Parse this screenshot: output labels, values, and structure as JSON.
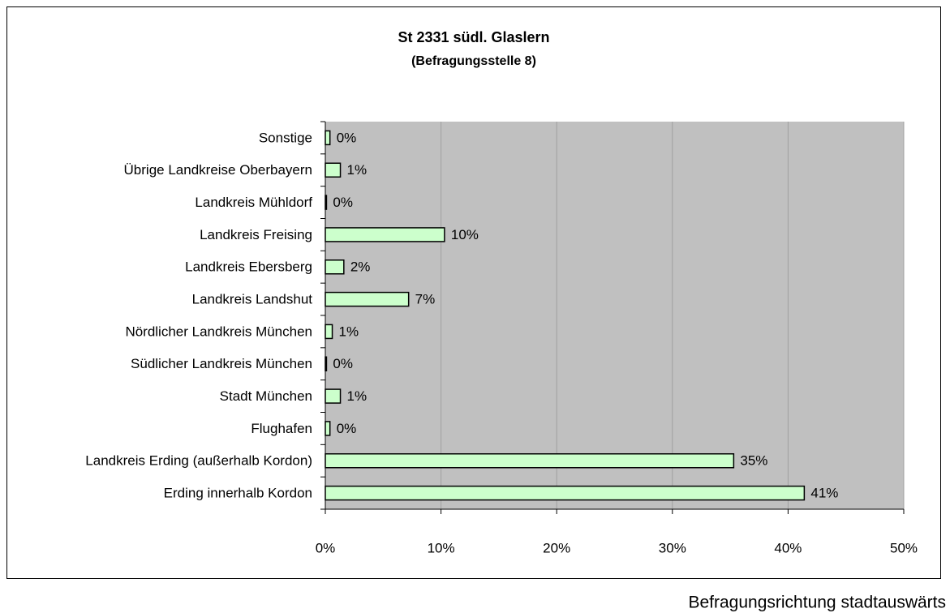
{
  "chart_data": {
    "type": "bar",
    "orientation": "horizontal",
    "title": "St 2331 südl. Glaslern",
    "subtitle": "(Befragungsstelle 8)",
    "note": "Befragungsrichtung stadtauswärts",
    "categories": [
      "Sonstige",
      "Übrige Landkreise Oberbayern",
      "Landkreis Mühldorf",
      "Landkreis Freising",
      "Landkreis Ebersberg",
      "Landkreis Landshut",
      "Nördlicher Landkreis München",
      "Südlicher Landkreis München",
      "Stadt München",
      "Flughafen",
      "Landkreis Erding (außerhalb Kordon)",
      "Erding innerhalb Kordon"
    ],
    "values": [
      0.4,
      1.3,
      0.1,
      10.3,
      1.6,
      7.2,
      0.6,
      0.1,
      1.3,
      0.4,
      35.3,
      41.4
    ],
    "value_labels": [
      "0%",
      "1%",
      "0%",
      "10%",
      "2%",
      "7%",
      "1%",
      "0%",
      "1%",
      "0%",
      "35%",
      "41%"
    ],
    "color": "#ccffcc",
    "xlim": [
      0,
      50
    ],
    "xticks": [
      {
        "value": 0,
        "label": "0%"
      },
      {
        "value": 10,
        "label": "10%"
      },
      {
        "value": 20,
        "label": "20%"
      },
      {
        "value": 30,
        "label": "30%"
      },
      {
        "value": 40,
        "label": "40%"
      },
      {
        "value": 50,
        "label": "50%"
      }
    ],
    "grid": true
  }
}
